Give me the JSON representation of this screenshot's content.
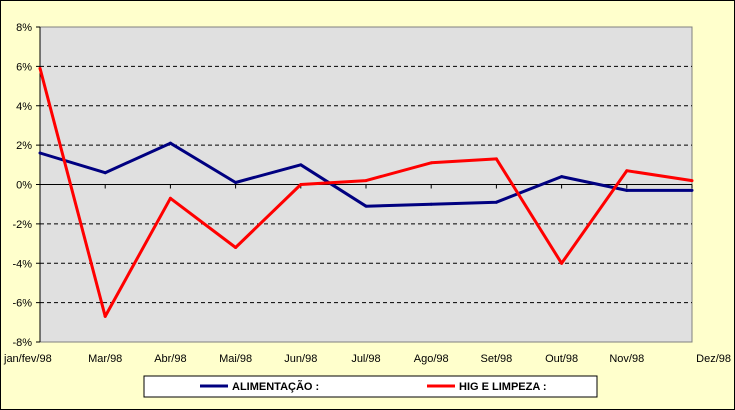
{
  "chart_data": {
    "type": "line",
    "title": "",
    "xlabel": "",
    "ylabel": "",
    "categories": [
      "jan/fev/98",
      "Mar/98",
      "Abr/98",
      "Mai/98",
      "Jun/98",
      "Jul/98",
      "Ago/98",
      "Set/98",
      "Out/98",
      "Nov/98",
      "Dez/98"
    ],
    "ylim": [
      -8,
      8
    ],
    "yticks": [
      8,
      6,
      4,
      2,
      0,
      -2,
      -4,
      -6,
      -8
    ],
    "ytick_labels": [
      "8%",
      "6%",
      "4%",
      "2%",
      "0%",
      "-2%",
      "-4%",
      "-6%",
      "-8%"
    ],
    "grid": "horizontal dashed",
    "legend_position": "bottom",
    "plot_background": "#e0e0e0",
    "series": [
      {
        "name": "ALIMENTAÇÃO :",
        "color": "#000080",
        "values": [
          1.6,
          0.6,
          2.1,
          0.1,
          1.0,
          -1.1,
          -1.0,
          -0.9,
          0.4,
          -0.3,
          -0.3
        ]
      },
      {
        "name": "HIG E LIMPEZA :",
        "color": "#ff0000",
        "values": [
          5.9,
          -6.7,
          -0.7,
          -3.2,
          0.0,
          0.2,
          1.1,
          1.3,
          -4.0,
          0.7,
          0.2
        ]
      }
    ]
  }
}
